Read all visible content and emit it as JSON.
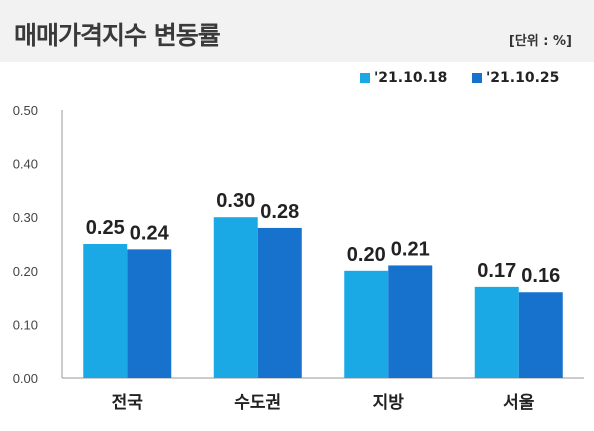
{
  "header": {
    "title": "매매가격지수 변동률",
    "unit": "[단위 : %]"
  },
  "colors": {
    "series1": "#1ba9e6",
    "series2": "#1672cd",
    "axis": "#999999",
    "text": "#222222"
  },
  "chart_data": {
    "type": "bar",
    "categories": [
      "전국",
      "수도권",
      "지방",
      "서울"
    ],
    "series": [
      {
        "name": "'21.10.18",
        "values": [
          0.25,
          0.3,
          0.2,
          0.17
        ],
        "labels": [
          "0.25",
          "0.30",
          "0.20",
          "0.17"
        ]
      },
      {
        "name": "'21.10.25",
        "values": [
          0.24,
          0.28,
          0.21,
          0.16
        ],
        "labels": [
          "0.24",
          "0.28",
          "0.21",
          "0.16"
        ]
      }
    ],
    "ylim": [
      0,
      0.5
    ],
    "yticks": [
      "0.00",
      "0.10",
      "0.20",
      "0.30",
      "0.40",
      "0.50"
    ],
    "legend_position": "top-right",
    "grid": false
  }
}
